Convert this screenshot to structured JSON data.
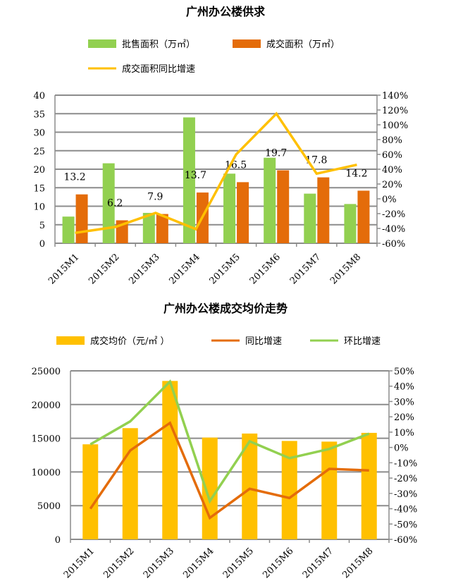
{
  "chart_data": [
    {
      "type": "bar",
      "title": "广州办公楼供求",
      "categories": [
        "2015M1",
        "2015M2",
        "2015M3",
        "2015M4",
        "2015M5",
        "2015M6",
        "2015M7",
        "2015M8"
      ],
      "series": [
        {
          "name": "批售面积（万㎡）",
          "kind": "bar",
          "axis": "left",
          "color": "#92D050",
          "values": [
            7.2,
            21.6,
            8.2,
            34.0,
            18.8,
            23.1,
            13.4,
            10.6
          ]
        },
        {
          "name": "成交面积（万㎡）",
          "kind": "bar",
          "axis": "left",
          "color": "#E46C0A",
          "values": [
            13.2,
            6.2,
            7.9,
            13.7,
            16.5,
            19.7,
            17.8,
            14.2
          ],
          "labels": [
            "13.2",
            "6.2",
            "7.9",
            "13.7",
            "16.5",
            "19.7",
            "17.8",
            "14.2"
          ]
        },
        {
          "name": "成交面积同比增速",
          "kind": "line",
          "axis": "right",
          "color": "#FFC000",
          "values": [
            -46,
            -38,
            -19,
            -41,
            60,
            115,
            34,
            46
          ]
        }
      ],
      "ylim": [
        0,
        40
      ],
      "yticks": [
        "0",
        "5",
        "10",
        "15",
        "20",
        "25",
        "30",
        "35",
        "40"
      ],
      "y2lim": [
        -60,
        140
      ],
      "y2ticks": [
        "-60%",
        "-40%",
        "-20%",
        "0%",
        "20%",
        "40%",
        "60%",
        "80%",
        "100%",
        "120%",
        "140%"
      ],
      "grid": true,
      "legend": "top"
    },
    {
      "type": "bar",
      "title": "广州办公楼成交均价走势",
      "categories": [
        "2015M1",
        "2015M2",
        "2015M3",
        "2015M4",
        "2015M5",
        "2015M6",
        "2015M7",
        "2015M8"
      ],
      "series": [
        {
          "name": "成交均价（元/㎡ ）",
          "kind": "bar",
          "axis": "left",
          "color": "#FFC000",
          "values": [
            14100,
            16500,
            23500,
            15100,
            15700,
            14600,
            14500,
            15800
          ]
        },
        {
          "name": "同比增速",
          "kind": "line",
          "axis": "right",
          "color": "#E46C0A",
          "values": [
            -40,
            -2,
            16,
            -46,
            -27,
            -33,
            -14,
            -15
          ]
        },
        {
          "name": "环比增速",
          "kind": "line",
          "axis": "right",
          "color": "#92D050",
          "values": [
            2,
            17,
            43,
            -35,
            4,
            -7,
            -1,
            9
          ]
        }
      ],
      "ylim": [
        0,
        25000
      ],
      "yticks": [
        "0",
        "5000",
        "10000",
        "15000",
        "20000",
        "25000"
      ],
      "y2lim": [
        -60,
        50
      ],
      "y2ticks": [
        "-60%",
        "-50%",
        "-40%",
        "-30%",
        "-20%",
        "-10%",
        "0%",
        "10%",
        "20%",
        "30%",
        "40%",
        "50%"
      ],
      "grid": true,
      "legend": "top"
    }
  ]
}
